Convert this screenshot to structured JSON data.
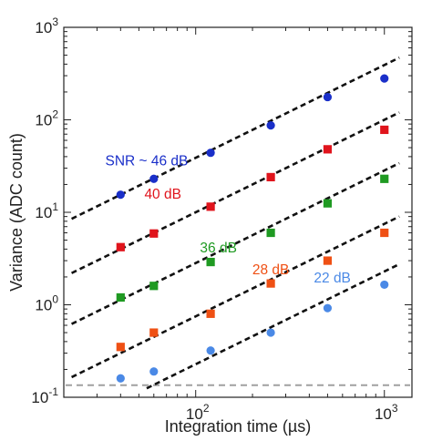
{
  "chart_data": {
    "type": "scatter",
    "title": "",
    "xlabel": "Integration time (µs)",
    "ylabel": "Variance (ADC count)",
    "x_scale": "log",
    "y_scale": "log",
    "xlim": [
      20,
      1400
    ],
    "ylim": [
      0.1,
      1000
    ],
    "grid": false,
    "x_ticks": [
      {
        "value": 100,
        "base": "10",
        "exp": "2"
      },
      {
        "value": 1000,
        "base": "10",
        "exp": "3"
      }
    ],
    "y_ticks": [
      {
        "value": 0.1,
        "base": "10",
        "exp": "-1"
      },
      {
        "value": 1,
        "base": "10",
        "exp": "0"
      },
      {
        "value": 10,
        "base": "10",
        "exp": "1"
      },
      {
        "value": 100,
        "base": "10",
        "exp": "2"
      },
      {
        "value": 1000,
        "base": "10",
        "exp": "3"
      }
    ],
    "noise_floor": {
      "y": 0.135,
      "color": "#a0a0a0",
      "style": "dashed"
    },
    "series": [
      {
        "label": "SNR ~ 46 dB",
        "color": "#1a2fc9",
        "marker": "circle",
        "x": [
          40,
          60,
          120,
          250,
          500,
          1000
        ],
        "y": [
          15.5,
          23,
          44,
          87,
          176,
          280
        ],
        "fit": {
          "x": [
            22,
            1200
          ],
          "y": [
            8.5,
            470
          ]
        },
        "annotation_at": [
          55,
          32
        ]
      },
      {
        "label": "40 dB",
        "color": "#e0141c",
        "marker": "square",
        "x": [
          40,
          60,
          120,
          250,
          500,
          1000
        ],
        "y": [
          4.2,
          5.9,
          11.5,
          24,
          48,
          78
        ],
        "fit": {
          "x": [
            22,
            1200
          ],
          "y": [
            2.2,
            120
          ]
        },
        "annotation_at": [
          67,
          14
        ]
      },
      {
        "label": "36 dB",
        "color": "#1f9a22",
        "marker": "square",
        "x": [
          40,
          60,
          120,
          250,
          500,
          1000
        ],
        "y": [
          1.2,
          1.6,
          2.9,
          6.0,
          12.5,
          23
        ],
        "fit": {
          "x": [
            22,
            1200
          ],
          "y": [
            0.62,
            34
          ]
        },
        "annotation_at": [
          132,
          3.7
        ]
      },
      {
        "label": "28 dB",
        "color": "#ef5014",
        "marker": "square",
        "x": [
          40,
          60,
          120,
          250,
          500,
          1000
        ],
        "y": [
          0.35,
          0.5,
          0.8,
          1.7,
          3.0,
          6.0
        ],
        "fit": {
          "x": [
            22,
            1200
          ],
          "y": [
            0.165,
            9
          ]
        },
        "annotation_at": [
          250,
          2.15
        ]
      },
      {
        "label": "22 dB",
        "color": "#4a89e6",
        "marker": "circle",
        "x": [
          40,
          60,
          120,
          250,
          500,
          1000
        ],
        "y": [
          0.16,
          0.19,
          0.32,
          0.5,
          0.92,
          1.65
        ],
        "fit": {
          "x": [
            55,
            1200
          ],
          "y": [
            0.125,
            2.75
          ]
        },
        "annotation_at": [
          530,
          1.75
        ]
      }
    ]
  }
}
